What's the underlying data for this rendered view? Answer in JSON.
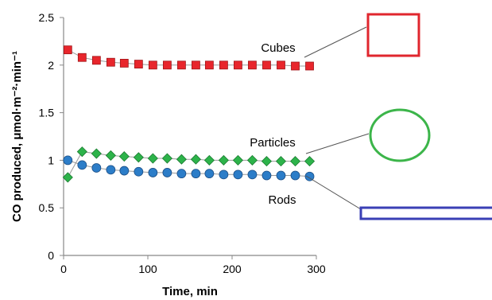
{
  "chart_data": {
    "type": "scatter",
    "xlabel": "Time, min",
    "ylabel": "CO produced, μmol·m⁻²·min⁻¹",
    "xlim": [
      0,
      300
    ],
    "ylim": [
      0,
      2.5
    ],
    "xticks": [
      "0",
      "100",
      "200",
      "300"
    ],
    "yticks": [
      "0",
      "0.5",
      "1",
      "1.5",
      "2",
      "2.5"
    ],
    "grid": false,
    "legend": "inline labels with leader lines to shape icons at right",
    "series": [
      {
        "name": "Cubes",
        "marker": "square",
        "color": "#e8262c",
        "x": [
          5,
          22,
          39,
          56,
          72,
          89,
          106,
          123,
          140,
          157,
          173,
          190,
          207,
          224,
          241,
          258,
          275,
          292
        ],
        "y": [
          2.16,
          2.08,
          2.05,
          2.03,
          2.02,
          2.01,
          2.0,
          2.0,
          2.0,
          2.0,
          2.0,
          2.0,
          2.0,
          2.0,
          2.0,
          2.0,
          1.99,
          1.99
        ]
      },
      {
        "name": "Particles",
        "marker": "diamond",
        "color": "#2db34a",
        "x": [
          5,
          22,
          39,
          56,
          72,
          89,
          106,
          123,
          140,
          157,
          173,
          190,
          207,
          224,
          241,
          258,
          275,
          292
        ],
        "y": [
          0.82,
          1.09,
          1.07,
          1.05,
          1.04,
          1.03,
          1.02,
          1.02,
          1.01,
          1.01,
          1.0,
          1.0,
          1.0,
          1.0,
          0.99,
          0.99,
          0.99,
          0.99
        ]
      },
      {
        "name": "Rods",
        "marker": "circle",
        "color": "#2c7dc8",
        "x": [
          5,
          22,
          39,
          56,
          72,
          89,
          106,
          123,
          140,
          157,
          173,
          190,
          207,
          224,
          241,
          258,
          275,
          292
        ],
        "y": [
          1.0,
          0.95,
          0.92,
          0.9,
          0.89,
          0.88,
          0.87,
          0.87,
          0.86,
          0.86,
          0.86,
          0.85,
          0.85,
          0.85,
          0.84,
          0.84,
          0.84,
          0.83
        ]
      }
    ]
  },
  "shape_icons": [
    {
      "series": "Cubes",
      "shape": "square-outline",
      "color": "#e0262e"
    },
    {
      "series": "Particles",
      "shape": "circle-outline",
      "color": "#3cb54a"
    },
    {
      "series": "Rods",
      "shape": "rod-outline",
      "color": "#3a3fb5"
    }
  ]
}
